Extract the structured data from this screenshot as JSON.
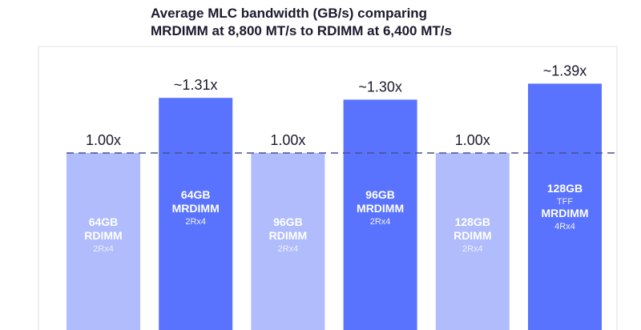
{
  "chart_data": {
    "type": "bar",
    "title": [
      "Average MLC bandwidth (GB/s) comparing",
      "MRDIMM at 8,800 MT/s  to RDIMM at 6,400 MT/s"
    ],
    "xlabel": "",
    "ylabel": "",
    "ylim": [
      0,
      1.39
    ],
    "reference_line": 1.0,
    "categories": [
      {
        "lines": [
          "64GB",
          "RDIMM",
          "2Rx4"
        ],
        "styles": [
          "b",
          "b",
          "s"
        ]
      },
      {
        "lines": [
          "64GB",
          "MRDIMM",
          "2Rx4"
        ],
        "styles": [
          "b",
          "b",
          "s"
        ]
      },
      {
        "lines": [
          "96GB",
          "RDIMM",
          "2Rx4"
        ],
        "styles": [
          "b",
          "b",
          "s"
        ]
      },
      {
        "lines": [
          "96GB",
          "MRDIMM",
          "2Rx4"
        ],
        "styles": [
          "b",
          "b",
          "s"
        ]
      },
      {
        "lines": [
          "128GB",
          "RDIMM",
          "2Rx4"
        ],
        "styles": [
          "b",
          "b",
          "s"
        ]
      },
      {
        "lines": [
          "128GB",
          "TFF",
          "MRDIMM",
          "4Rx4"
        ],
        "styles": [
          "b",
          "s",
          "b",
          "s"
        ]
      }
    ],
    "values": [
      1.0,
      1.31,
      1.0,
      1.3,
      1.0,
      1.39
    ],
    "value_labels": [
      "1.00x",
      "~1.31x",
      "1.00x",
      "~1.30x",
      "1.00x",
      "~1.39x"
    ],
    "series_types": [
      "RDIMM",
      "MRDIMM",
      "RDIMM",
      "MRDIMM",
      "RDIMM",
      "MRDIMM"
    ],
    "colors": {
      "RDIMM": "#b0bcfc",
      "MRDIMM": "#5a73ff",
      "reference": "#4a5090",
      "frame": "#e2e2e2"
    },
    "grid": false
  }
}
